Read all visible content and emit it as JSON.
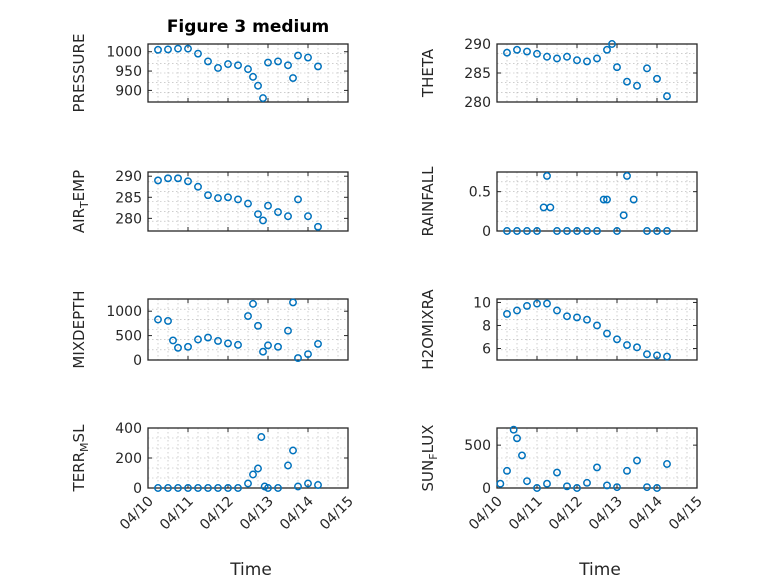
{
  "figure_title": "Figure 3 medium",
  "x_axis_title": "Time",
  "x_tick_labels": [
    "04/10",
    "04/11",
    "04/12",
    "04/13",
    "04/14",
    "04/15"
  ],
  "chart_data": [
    {
      "type": "scatter",
      "title": "Figure 3 medium",
      "ylabel": "PRESSURE",
      "xlabel": "",
      "xlim": [
        "04/10",
        "04/15"
      ],
      "ylim": [
        870,
        1020
      ],
      "yticks": [
        900,
        950,
        1000
      ],
      "grid": true,
      "color": "#0072bd",
      "x": [
        "04/10 06:00",
        "04/10 12:00",
        "04/10 18:00",
        "04/11 00:00",
        "04/11 06:00",
        "04/11 12:00",
        "04/11 18:00",
        "04/12 00:00",
        "04/12 06:00",
        "04/12 12:00",
        "04/12 15:00",
        "04/12 18:00",
        "04/12 21:00",
        "04/13 00:00",
        "04/13 06:00",
        "04/13 12:00",
        "04/13 15:00",
        "04/13 18:00",
        "04/14 00:00",
        "04/14 06:00"
      ],
      "y": [
        1005,
        1006,
        1008,
        1008,
        995,
        975,
        958,
        968,
        965,
        955,
        935,
        912,
        880,
        972,
        975,
        965,
        932,
        990,
        985,
        962
      ]
    },
    {
      "type": "scatter",
      "ylabel": "THETA",
      "xlim": [
        "04/10",
        "04/15"
      ],
      "ylim": [
        280,
        290
      ],
      "yticks": [
        280,
        285,
        290
      ],
      "grid": true,
      "color": "#0072bd",
      "x": [
        "04/10 06:00",
        "04/10 12:00",
        "04/10 18:00",
        "04/11 00:00",
        "04/11 06:00",
        "04/11 12:00",
        "04/11 18:00",
        "04/12 00:00",
        "04/12 06:00",
        "04/12 12:00",
        "04/12 18:00",
        "04/12 21:00",
        "04/13 00:00",
        "04/13 06:00",
        "04/13 12:00",
        "04/13 18:00",
        "04/14 00:00",
        "04/14 06:00"
      ],
      "y": [
        288.5,
        289,
        288.7,
        288.3,
        287.8,
        287.5,
        287.8,
        287.2,
        287.0,
        287.5,
        289.0,
        290.0,
        286.0,
        283.5,
        282.8,
        285.8,
        284.0,
        281.0
      ]
    },
    {
      "type": "scatter",
      "ylabel": "AIR_TEMP",
      "xlim": [
        "04/10",
        "04/15"
      ],
      "ylim": [
        277,
        291
      ],
      "yticks": [
        280,
        285,
        290
      ],
      "grid": true,
      "color": "#0072bd",
      "x": [
        "04/10 06:00",
        "04/10 12:00",
        "04/10 18:00",
        "04/11 00:00",
        "04/11 06:00",
        "04/11 12:00",
        "04/11 18:00",
        "04/12 00:00",
        "04/12 06:00",
        "04/12 12:00",
        "04/12 18:00",
        "04/12 21:00",
        "04/13 00:00",
        "04/13 06:00",
        "04/13 12:00",
        "04/13 18:00",
        "04/14 00:00",
        "04/14 06:00"
      ],
      "y": [
        289,
        289.5,
        289.5,
        288.8,
        287.5,
        285.5,
        284.8,
        285.0,
        284.5,
        283.5,
        281.0,
        279.5,
        283.0,
        281.5,
        280.5,
        284.5,
        280.5,
        278.0
      ]
    },
    {
      "type": "scatter",
      "ylabel": "RAINFALL",
      "xlim": [
        "04/10",
        "04/15"
      ],
      "ylim": [
        0,
        0.75
      ],
      "yticks": [
        0,
        0.5
      ],
      "grid": true,
      "color": "#0072bd",
      "x": [
        "04/10 06:00",
        "04/10 12:00",
        "04/10 18:00",
        "04/11 00:00",
        "04/11 04:00",
        "04/11 06:00",
        "04/11 08:00",
        "04/11 12:00",
        "04/11 18:00",
        "04/12 00:00",
        "04/12 06:00",
        "04/12 12:00",
        "04/12 16:00",
        "04/12 18:00",
        "04/13 00:00",
        "04/13 04:00",
        "04/13 06:00",
        "04/13 10:00",
        "04/13 18:00",
        "04/14 00:00",
        "04/14 06:00"
      ],
      "y": [
        0,
        0,
        0,
        0,
        0.3,
        0.7,
        0.3,
        0,
        0,
        0,
        0,
        0,
        0.4,
        0.4,
        0,
        0.2,
        0.7,
        0.4,
        0,
        0,
        0
      ]
    },
    {
      "type": "scatter",
      "ylabel": "MIXDEPTH",
      "xlim": [
        "04/10",
        "04/15"
      ],
      "ylim": [
        0,
        1250
      ],
      "yticks": [
        0,
        500,
        1000
      ],
      "grid": true,
      "color": "#0072bd",
      "x": [
        "04/10 06:00",
        "04/10 12:00",
        "04/10 15:00",
        "04/10 18:00",
        "04/11 00:00",
        "04/11 06:00",
        "04/11 12:00",
        "04/11 18:00",
        "04/12 00:00",
        "04/12 06:00",
        "04/12 12:00",
        "04/12 15:00",
        "04/12 18:00",
        "04/12 21:00",
        "04/13 00:00",
        "04/13 06:00",
        "04/13 12:00",
        "04/13 15:00",
        "04/13 18:00",
        "04/14 00:00",
        "04/14 06:00"
      ],
      "y": [
        830,
        800,
        400,
        250,
        270,
        420,
        460,
        390,
        340,
        310,
        900,
        1150,
        700,
        170,
        300,
        270,
        600,
        1180,
        40,
        120,
        330
      ]
    },
    {
      "type": "scatter",
      "ylabel": "H2OMIXRA",
      "xlim": [
        "04/10",
        "04/15"
      ],
      "ylim": [
        5,
        10.3
      ],
      "yticks": [
        6,
        8,
        10
      ],
      "grid": true,
      "color": "#0072bd",
      "x": [
        "04/10 06:00",
        "04/10 12:00",
        "04/10 18:00",
        "04/11 00:00",
        "04/11 06:00",
        "04/11 12:00",
        "04/11 18:00",
        "04/12 00:00",
        "04/12 06:00",
        "04/12 12:00",
        "04/12 18:00",
        "04/13 00:00",
        "04/13 06:00",
        "04/13 12:00",
        "04/13 18:00",
        "04/14 00:00",
        "04/14 06:00"
      ],
      "y": [
        9.0,
        9.3,
        9.7,
        9.9,
        9.9,
        9.3,
        8.8,
        8.7,
        8.5,
        8.0,
        7.3,
        6.8,
        6.3,
        6.1,
        5.5,
        5.4,
        5.3
      ]
    },
    {
      "type": "scatter",
      "ylabel": "TERR_MSL",
      "xlim": [
        "04/10",
        "04/15"
      ],
      "ylim": [
        0,
        400
      ],
      "yticks": [
        0,
        200,
        400
      ],
      "grid": true,
      "color": "#0072bd",
      "x": [
        "04/10 06:00",
        "04/10 12:00",
        "04/10 18:00",
        "04/11 00:00",
        "04/11 06:00",
        "04/11 12:00",
        "04/11 18:00",
        "04/12 00:00",
        "04/12 06:00",
        "04/12 12:00",
        "04/12 15:00",
        "04/12 18:00",
        "04/12 20:00",
        "04/12 22:00",
        "04/13 00:00",
        "04/13 06:00",
        "04/13 12:00",
        "04/13 15:00",
        "04/13 18:00",
        "04/14 00:00",
        "04/14 06:00"
      ],
      "y": [
        0,
        0,
        0,
        0,
        0,
        0,
        0,
        0,
        0,
        30,
        90,
        130,
        340,
        10,
        0,
        0,
        150,
        250,
        10,
        30,
        20
      ]
    },
    {
      "type": "scatter",
      "ylabel": "SUN_FLUX",
      "xlim": [
        "04/10",
        "04/15"
      ],
      "ylim": [
        0,
        700
      ],
      "yticks": [
        0,
        500
      ],
      "grid": true,
      "color": "#0072bd",
      "x": [
        "04/10 02:00",
        "04/10 06:00",
        "04/10 10:00",
        "04/10 12:00",
        "04/10 15:00",
        "04/10 18:00",
        "04/11 00:00",
        "04/11 06:00",
        "04/11 12:00",
        "04/11 18:00",
        "04/12 00:00",
        "04/12 06:00",
        "04/12 12:00",
        "04/12 18:00",
        "04/13 00:00",
        "04/13 06:00",
        "04/13 12:00",
        "04/13 18:00",
        "04/14 00:00",
        "04/14 06:00"
      ],
      "y": [
        50,
        200,
        680,
        580,
        380,
        80,
        0,
        50,
        180,
        20,
        0,
        60,
        240,
        30,
        10,
        200,
        320,
        10,
        0,
        280
      ]
    }
  ]
}
